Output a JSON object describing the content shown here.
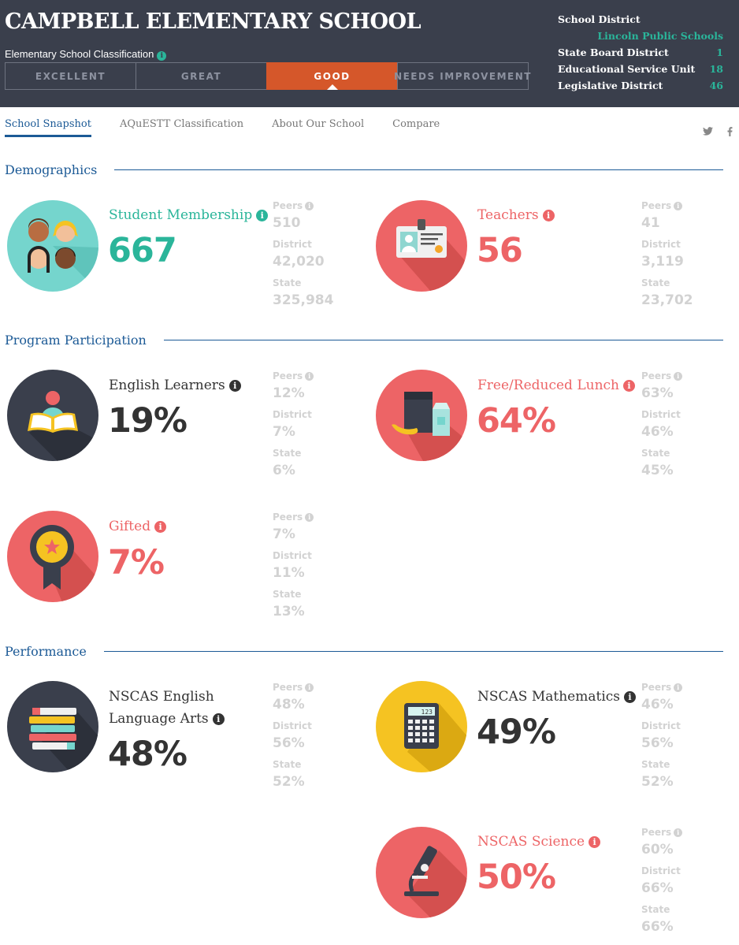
{
  "header": {
    "title": "CAMPBELL ELEMENTARY SCHOOL",
    "classification_label": "Elementary School Classification",
    "classifications": [
      "EXCELLENT",
      "GREAT",
      "GOOD",
      "NEEDS IMPROVEMENT"
    ],
    "active_classification": "GOOD"
  },
  "district": {
    "school_district_label": "School District",
    "school_district_value": "Lincoln Public Schools",
    "state_board_label": "State Board District",
    "state_board_value": "1",
    "esu_label": "Educational Service Unit",
    "esu_value": "18",
    "legislative_label": "Legislative District",
    "legislative_value": "46"
  },
  "tabs": [
    "School Snapshot",
    "AQuESTT Classification",
    "About Our School",
    "Compare"
  ],
  "social": {
    "twitter": "twitter-icon",
    "facebook": "facebook-icon"
  },
  "comparison_labels": {
    "peers": "Peers",
    "district": "District",
    "state": "State"
  },
  "sections": {
    "demographics": "Demographics",
    "program": "Program Participation",
    "performance": "Performance"
  },
  "stats": {
    "membership": {
      "label": "Student Membership",
      "value": "667",
      "peers": "510",
      "district": "42,020",
      "state": "325,984",
      "icon": "students-icon"
    },
    "teachers": {
      "label": "Teachers",
      "value": "56",
      "peers": "41",
      "district": "3,119",
      "state": "23,702",
      "icon": "id-badge-icon"
    },
    "english_learners": {
      "label": "English Learners",
      "value": "19%",
      "peers": "12%",
      "district": "7%",
      "state": "6%",
      "icon": "reader-icon"
    },
    "lunch": {
      "label": "Free/Reduced Lunch",
      "value": "64%",
      "peers": "63%",
      "district": "46%",
      "state": "45%",
      "icon": "lunch-icon"
    },
    "gifted": {
      "label": "Gifted",
      "value": "7%",
      "peers": "7%",
      "district": "11%",
      "state": "13%",
      "icon": "ribbon-icon"
    },
    "ela": {
      "label": "NSCAS English Language Arts",
      "value": "48%",
      "peers": "48%",
      "district": "56%",
      "state": "52%",
      "icon": "books-icon"
    },
    "math": {
      "label": "NSCAS Mathematics",
      "value": "49%",
      "peers": "46%",
      "district": "56%",
      "state": "52%",
      "icon": "calculator-icon",
      "calc_display": "123"
    },
    "science": {
      "label": "NSCAS Science",
      "value": "50%",
      "peers": "60%",
      "district": "66%",
      "state": "66%",
      "icon": "microscope-icon"
    }
  },
  "colors": {
    "header_bg": "#3a3f4c",
    "accent_teal": "#2ab59a",
    "accent_red": "#ed6466",
    "active_orange": "#d5572a",
    "link_blue": "#1c5a96",
    "muted_gray": "#d2d2d2"
  }
}
